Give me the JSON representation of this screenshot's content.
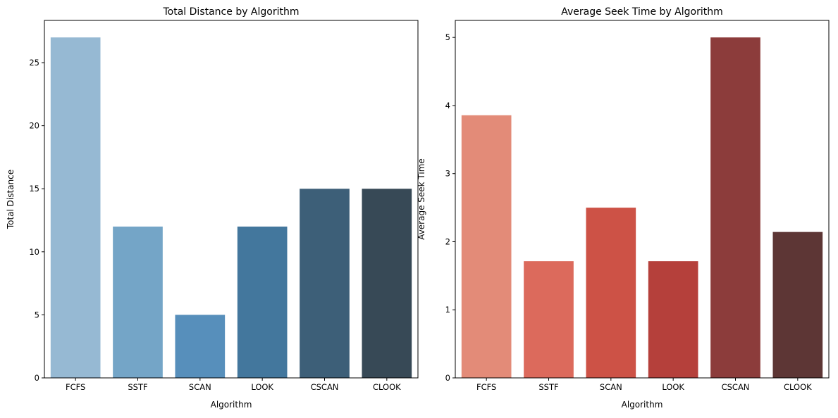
{
  "chart_data": [
    {
      "type": "bar",
      "title": "Total Distance by Algorithm",
      "xlabel": "Algorithm",
      "ylabel": "Total Distance",
      "categories": [
        "FCFS",
        "SSTF",
        "SCAN",
        "LOOK",
        "CSCAN",
        "CLOOK"
      ],
      "values": [
        27,
        12,
        5,
        12,
        15,
        15
      ],
      "ylim": [
        0,
        28.35
      ],
      "yticks": [
        0,
        5,
        10,
        15,
        20,
        25
      ],
      "colors": [
        "#96b9d3",
        "#74a5c7",
        "#578fbb",
        "#43779d",
        "#3d5f78",
        "#374956"
      ],
      "grid": false
    },
    {
      "type": "bar",
      "title": "Average Seek Time by Algorithm",
      "xlabel": "Algorithm",
      "ylabel": "Average Seek Time",
      "categories": [
        "FCFS",
        "SSTF",
        "SCAN",
        "LOOK",
        "CSCAN",
        "CLOOK"
      ],
      "values": [
        3.857,
        1.714,
        2.5,
        1.714,
        5.0,
        2.143
      ],
      "ylim": [
        0,
        5.25
      ],
      "yticks": [
        0,
        1,
        2,
        3,
        4,
        5
      ],
      "colors": [
        "#e38b78",
        "#dc6a5c",
        "#cd5246",
        "#b5403b",
        "#8c3c3b",
        "#5d3635"
      ],
      "grid": false
    }
  ]
}
